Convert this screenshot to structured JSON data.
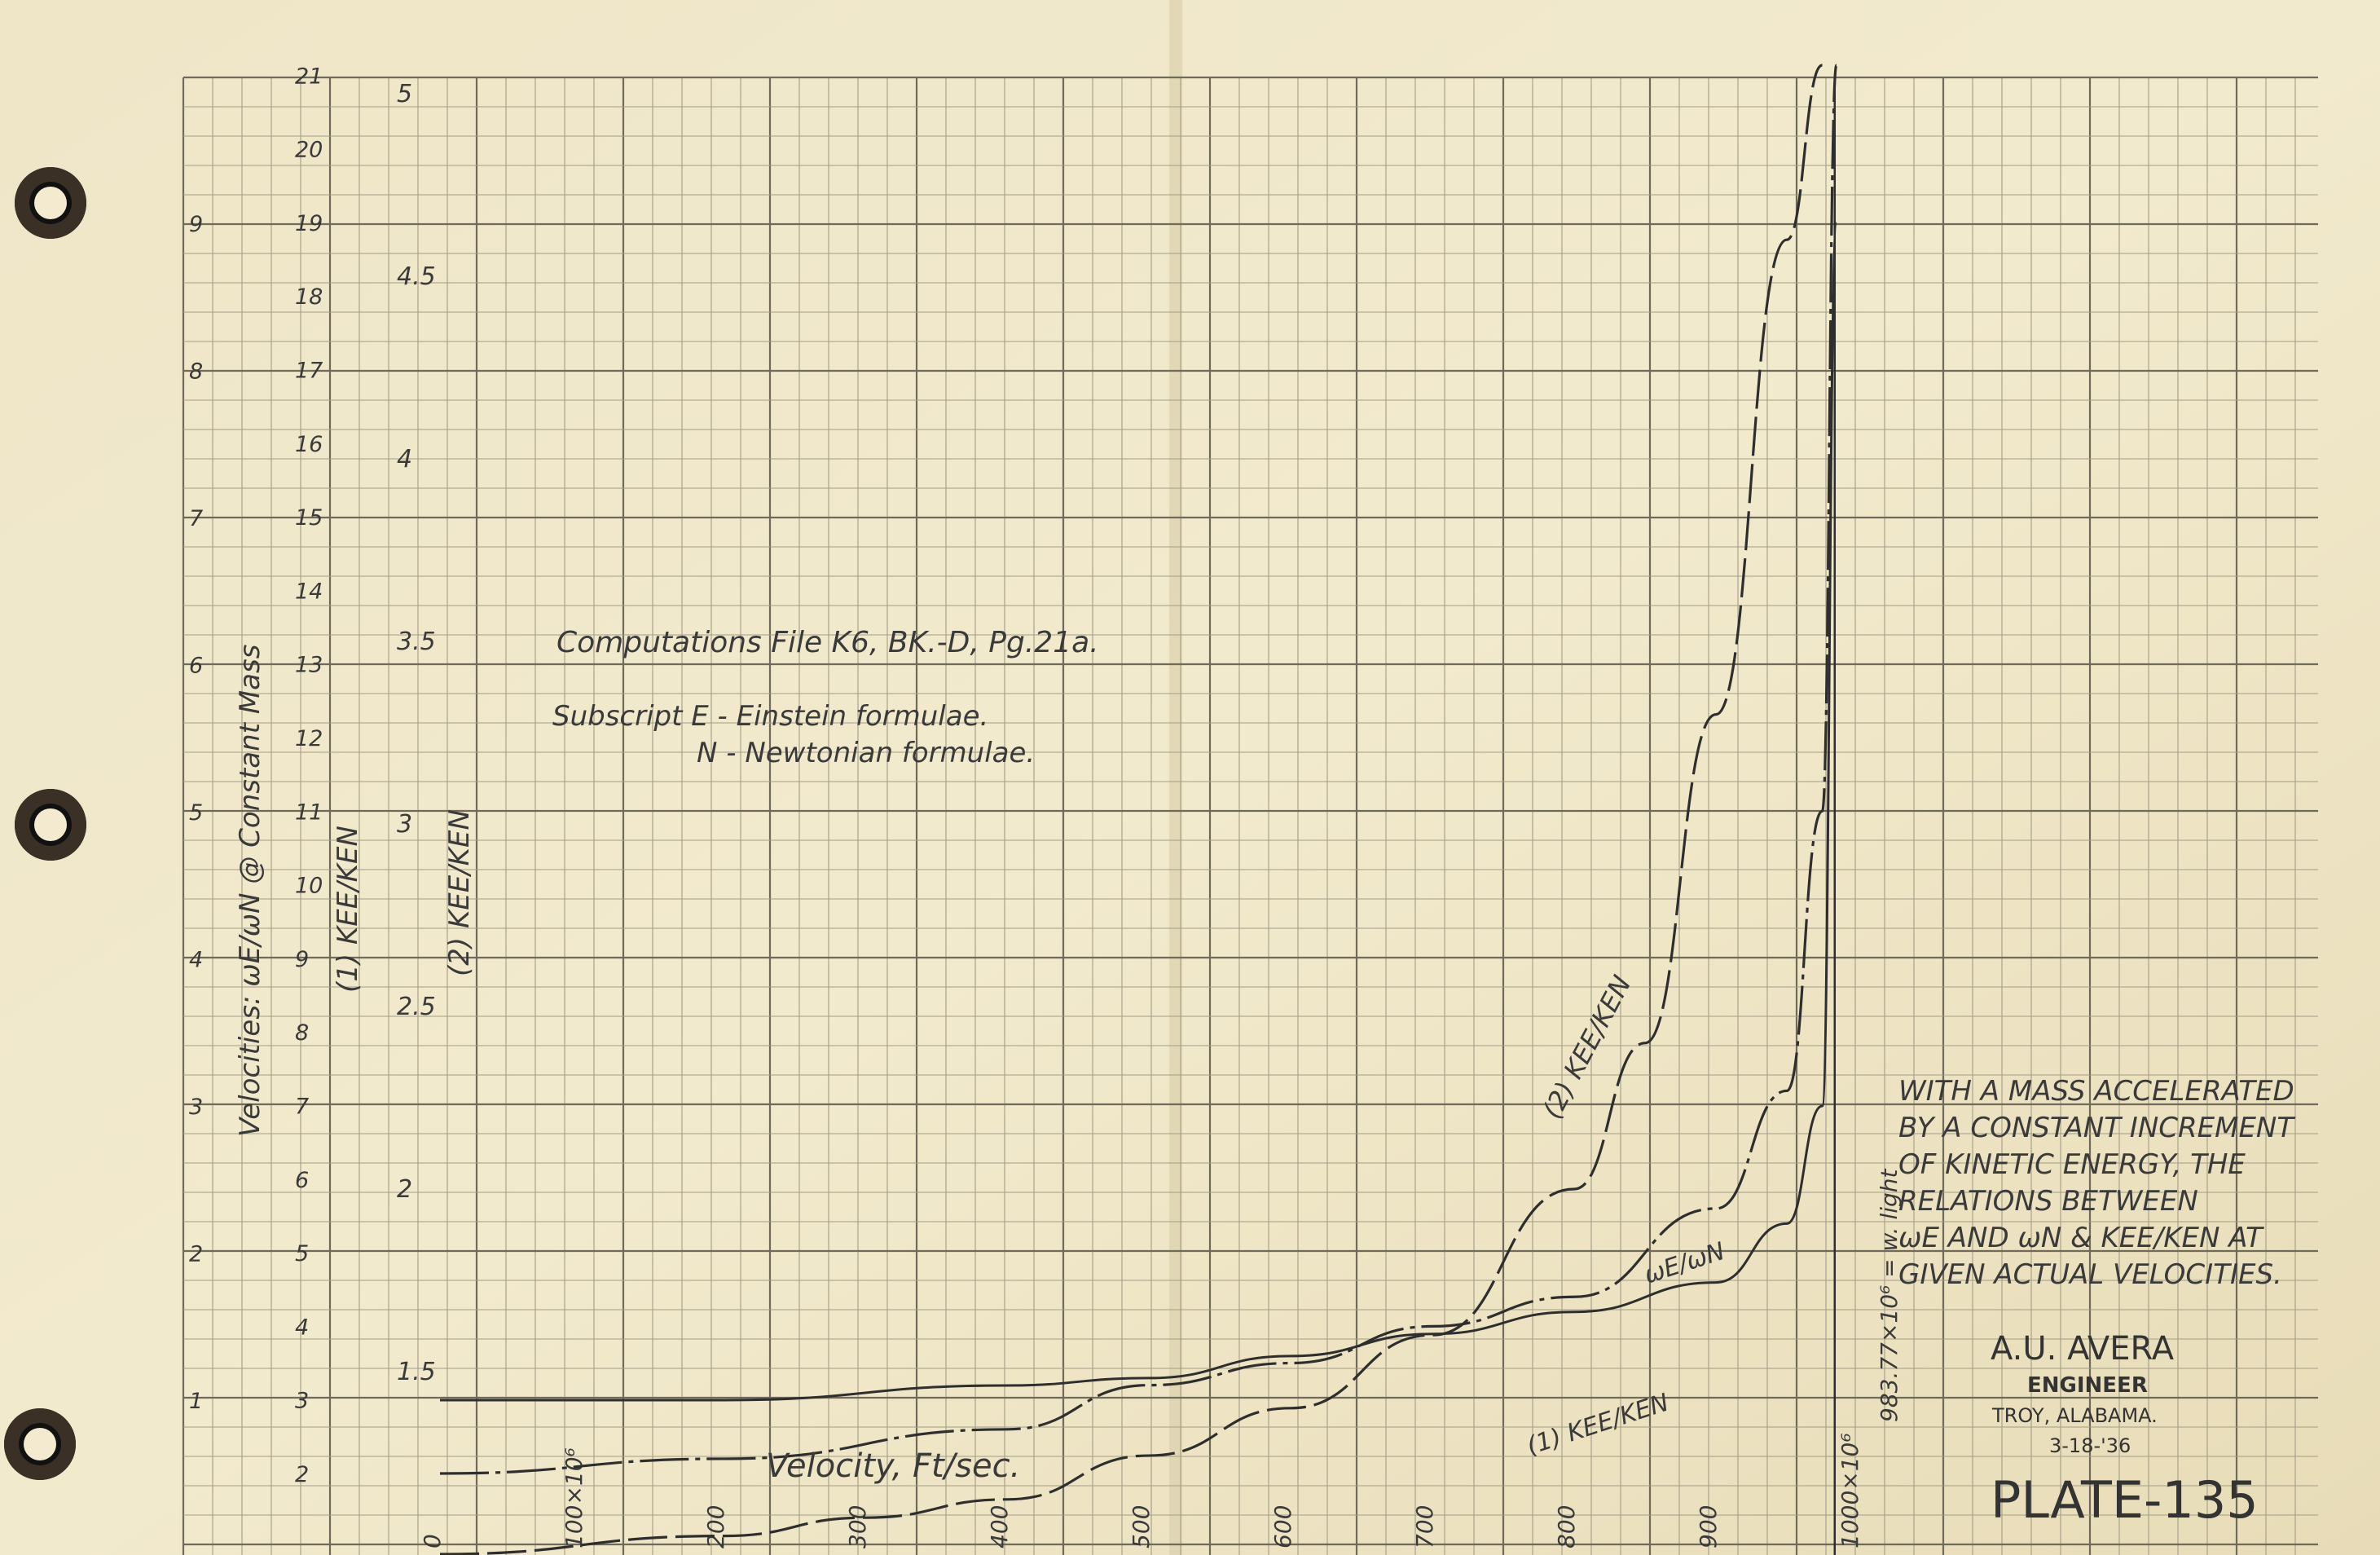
{
  "chart_data": {
    "type": "line",
    "notes": {
      "computations": "Computations File K6, BK.-D, Pg.21a.",
      "subscript_e": "Subscript E - Einstein formulae.",
      "subscript_n": "N - Newtonian formulae."
    },
    "x_axis": {
      "label": "Velocity, Ft/sec.",
      "ticks": [
        "0",
        "100×10⁶",
        "200",
        "300",
        "400",
        "500",
        "600",
        "700",
        "800",
        "900",
        "1000×10⁶"
      ],
      "light_label": "983.77×10⁶ = w. light"
    },
    "y_axes": [
      {
        "label": "Velocities: ωE/ωN @ Constant Mass",
        "ticks": [
          "1",
          "2",
          "3",
          "4",
          "5",
          "6",
          "7",
          "8",
          "9"
        ]
      },
      {
        "label": "(1) KEE/KEN",
        "ticks": [
          "2",
          "3",
          "4",
          "5",
          "6",
          "7",
          "8",
          "9",
          "10",
          "11",
          "12",
          "13",
          "14",
          "15",
          "16",
          "17",
          "18",
          "19",
          "20",
          "21"
        ]
      },
      {
        "label": "(2) KEE/KEN",
        "ticks": [
          "1.5",
          "2",
          "2.5",
          "3",
          "3.5",
          "4",
          "4.5",
          "5"
        ]
      }
    ],
    "series": [
      {
        "name": "ωE/ωN",
        "axis": 0,
        "x": [
          0,
          200,
          400,
          500,
          600,
          700,
          800,
          900,
          950,
          975,
          985
        ],
        "y": [
          1.0,
          1.0,
          1.1,
          1.15,
          1.3,
          1.45,
          1.6,
          1.8,
          2.2,
          3.0,
          9.0
        ]
      },
      {
        "name": "(1) KEE/KEN",
        "axis": 1,
        "x": [
          0,
          200,
          400,
          500,
          600,
          700,
          800,
          900,
          950,
          975,
          985
        ],
        "y": [
          1.0,
          1.1,
          1.3,
          1.6,
          1.75,
          2.0,
          2.2,
          2.8,
          3.6,
          5.5,
          21.0
        ]
      },
      {
        "name": "(2) KEE/KEN",
        "axis": 2,
        "x": [
          0,
          200,
          300,
          400,
          500,
          600,
          700,
          800,
          850,
          900,
          950,
          975
        ],
        "y": [
          1.0,
          1.05,
          1.1,
          1.15,
          1.27,
          1.4,
          1.6,
          2.0,
          2.4,
          3.3,
          4.6,
          5.2
        ]
      }
    ]
  },
  "title_block": {
    "line1": "WITH A MASS ACCELERATED",
    "line2": "BY A CONSTANT INCREMENT",
    "line3": "OF KINETIC ENERGY, THE",
    "line4": "RELATIONS BETWEEN",
    "line5": "ωE AND ωN & KEE/KEN AT",
    "line6": "GIVEN ACTUAL VELOCITIES."
  },
  "signature": {
    "name": "A.U. AVERA",
    "title": "ENGINEER",
    "place": "TROY, ALABAMA.",
    "date": "3-18-'36"
  },
  "plate": "PLATE-135",
  "colors": {
    "paper": "#ece3c4",
    "grid_major": "#6f6a5a",
    "grid_minor": "#a39d86",
    "ink": "#2e2e2e"
  }
}
